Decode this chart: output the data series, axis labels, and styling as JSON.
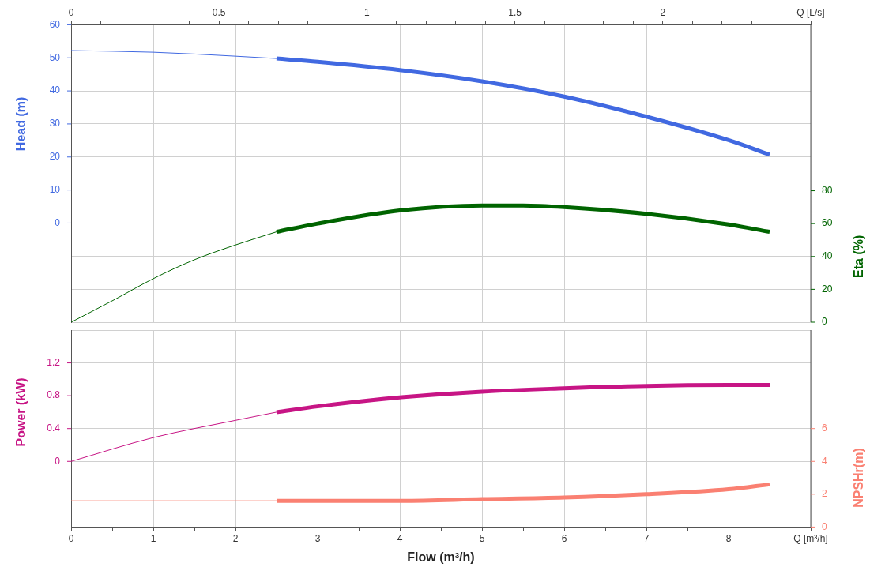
{
  "chart_data": [
    {
      "type": "line",
      "tick_labels": "y",
      "xlim": [
        0,
        9
      ],
      "xticks": [
        0,
        1,
        2,
        3,
        4,
        5,
        6,
        7,
        8,
        9
      ],
      "x2lim": [
        0,
        2.5
      ],
      "x2ticks": [
        0,
        {
          "value": 0.1,
          "label": null
        },
        {
          "value": 0.2,
          "label": null
        },
        {
          "value": 0.3,
          "label": null
        },
        {
          "value": 0.4,
          "label": null
        },
        0.5,
        {
          "value": 0.6,
          "label": null
        },
        {
          "value": 0.7,
          "label": null
        },
        {
          "value": 0.8,
          "label": null
        },
        {
          "value": 0.9,
          "label": null
        },
        1,
        {
          "value": 1.1,
          "label": null
        },
        {
          "value": 1.2,
          "label": null
        },
        {
          "value": 1.3,
          "label": null
        },
        {
          "value": 1.4,
          "label": null
        },
        1.5,
        {
          "value": 1.6,
          "label": null
        },
        {
          "value": 1.7,
          "label": null
        },
        {
          "value": 1.8,
          "label": null
        },
        {
          "value": 1.9,
          "label": null
        },
        2,
        {
          "value": 2.1,
          "label": null
        },
        {
          "value": 2.2,
          "label": null
        },
        {
          "value": 2.3,
          "label": null
        },
        {
          "value": 2.4,
          "label": null
        },
        {
          "value": 2.5,
          "label": "Q [L/s]"
        }
      ],
      "ylabel": "Head (m)",
      "ylim": [
        -30,
        60
      ],
      "yticks": [
        60,
        50,
        40,
        30,
        20,
        10,
        0,
        {
          "value": -10,
          "label": null
        },
        {
          "value": -20,
          "label": null
        },
        {
          "value": -30,
          "label": null
        }
      ],
      "y2label": "Eta (%)",
      "y2lim": [
        0,
        181
      ],
      "y2ticks": [
        0,
        20,
        40,
        60,
        80
      ],
      "grid": true,
      "series": [
        {
          "color": "#4169e1",
          "x": [
            0,
            1,
            2,
            2.5
          ],
          "values": [
            52.2,
            51.7,
            50.5,
            49.8
          ]
        },
        {
          "color": "#4169e1",
          "x": [
            2.5,
            3,
            4,
            5,
            6,
            7,
            8,
            8.5
          ],
          "values": [
            49.8,
            48.8,
            46.3,
            42.9,
            38.3,
            32.2,
            25.1,
            20.7
          ]
        },
        {
          "color": "#006400",
          "axis": "y2",
          "x": [
            0,
            0.5,
            1,
            1.5,
            2,
            2.5
          ],
          "values": [
            0,
            13,
            26.5,
            38,
            47,
            55
          ]
        },
        {
          "color": "#006400",
          "axis": "y2",
          "x": [
            2.5,
            3,
            4,
            5,
            5.5,
            6,
            7,
            8,
            8.5
          ],
          "values": [
            55,
            60,
            68,
            71,
            71,
            70,
            66,
            59.5,
            55
          ]
        }
      ]
    },
    {
      "type": "line",
      "xlabel": "Flow (m³/h)",
      "xlim": [
        0,
        9
      ],
      "xticks": [
        0,
        {
          "value": 0.5,
          "label": null
        },
        1,
        {
          "value": 1.5,
          "label": null
        },
        2,
        {
          "value": 2.5,
          "label": null
        },
        3,
        {
          "value": 3.5,
          "label": null
        },
        4,
        {
          "value": 4.5,
          "label": null
        },
        5,
        {
          "value": 5.5,
          "label": null
        },
        6,
        {
          "value": 6.5,
          "label": null
        },
        7,
        {
          "value": 7.5,
          "label": null
        },
        8,
        {
          "value": 8.5,
          "label": null
        },
        {
          "value": 9,
          "label": "Q [m³/h]"
        }
      ],
      "ylabel": "Power (kW)",
      "ylim": [
        -0.8,
        1.6
      ],
      "yticks": [
        {
          "value": 1.6,
          "label": null
        },
        1.2,
        0.8,
        0.4,
        0,
        {
          "value": -0.4,
          "label": null
        },
        {
          "value": -0.8,
          "label": null
        }
      ],
      "y2label": "NPSHr(m)",
      "y2lim": [
        0,
        12
      ],
      "y2ticks": [
        0,
        2,
        4,
        6
      ],
      "grid": true,
      "series": [
        {
          "color": "#c71585",
          "x": [
            0,
            1,
            2,
            2.5
          ],
          "values": [
            0,
            0.29,
            0.5,
            0.6
          ]
        },
        {
          "color": "#c71585",
          "x": [
            2.5,
            3,
            4,
            5,
            6,
            7,
            8,
            8.5
          ],
          "values": [
            0.6,
            0.67,
            0.78,
            0.85,
            0.89,
            0.92,
            0.93,
            0.93
          ]
        },
        {
          "color": "#fa8072",
          "axis": "y2",
          "x": [
            0,
            1,
            2,
            2.5
          ],
          "values": [
            1.6,
            1.6,
            1.6,
            1.6
          ]
        },
        {
          "color": "#fa8072",
          "axis": "y2",
          "x": [
            2.5,
            4,
            5,
            6,
            7,
            8,
            8.5
          ],
          "values": [
            1.6,
            1.6,
            1.7,
            1.8,
            2.0,
            2.3,
            2.6
          ]
        }
      ]
    }
  ]
}
